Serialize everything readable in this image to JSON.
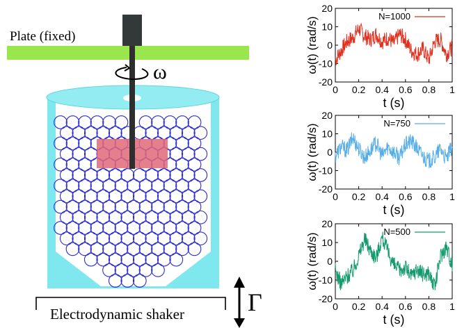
{
  "diagram": {
    "plate_label": "Plate (fixed)",
    "omega_label": "ω",
    "shaker_label": "Electrodynamic shaker",
    "gamma_label": "Γ",
    "colors": {
      "plate": "#99e64d",
      "container": "#7fe8ee",
      "container_light": "#b8f3f6",
      "grains": "#2b2bd6",
      "probe": "#e06878",
      "rod": "#333333"
    }
  },
  "chart_data": [
    {
      "type": "line",
      "legend": "N=1000",
      "color": "#e0301e",
      "xlabel": "t (s)",
      "ylabel": "ω(t)  (rad/s)",
      "xlim": [
        0,
        1
      ],
      "ylim": [
        -20,
        20
      ],
      "xticks": [
        "0",
        "0.2",
        "0.4",
        "0.6",
        "0.8",
        "1"
      ],
      "yticks": [
        "-20",
        "-10",
        "0",
        "10",
        "20"
      ],
      "x": [
        0,
        0.05,
        0.1,
        0.15,
        0.2,
        0.25,
        0.3,
        0.35,
        0.4,
        0.45,
        0.5,
        0.55,
        0.6,
        0.65,
        0.7,
        0.75,
        0.8,
        0.85,
        0.9,
        0.95,
        1
      ],
      "values": [
        -8,
        -3,
        2,
        4,
        9,
        5,
        3,
        6,
        2,
        4,
        1,
        6,
        3,
        -3,
        -5,
        -2,
        -8,
        2,
        3,
        -5,
        -1
      ]
    },
    {
      "type": "line",
      "legend": "N=750",
      "color": "#55aee8",
      "xlabel": "t (s)",
      "ylabel": "ω(t)  (rad/s)",
      "xlim": [
        0,
        1
      ],
      "ylim": [
        -20,
        20
      ],
      "xticks": [
        "0",
        "0.2",
        "0.4",
        "0.6",
        "0.8",
        "1"
      ],
      "yticks": [
        "-20",
        "-10",
        "0",
        "10",
        "20"
      ],
      "x": [
        0,
        0.05,
        0.1,
        0.15,
        0.2,
        0.25,
        0.3,
        0.35,
        0.4,
        0.45,
        0.5,
        0.55,
        0.6,
        0.65,
        0.7,
        0.75,
        0.8,
        0.85,
        0.9,
        0.95,
        1
      ],
      "values": [
        -2,
        3,
        1,
        8,
        2,
        -3,
        1,
        5,
        -2,
        3,
        0,
        -3,
        4,
        6,
        2,
        -2,
        -5,
        -3,
        2,
        -4,
        3
      ]
    },
    {
      "type": "line",
      "legend": "N=500",
      "color": "#149a6e",
      "xlabel": "t (s)",
      "ylabel": "ω(t)  (rad/s)",
      "xlim": [
        0,
        1
      ],
      "ylim": [
        -20,
        20
      ],
      "xticks": [
        "0",
        "0.2",
        "0.4",
        "0.6",
        "0.8",
        "1"
      ],
      "yticks": [
        "-20",
        "-10",
        "0",
        "10",
        "20"
      ],
      "x": [
        0,
        0.05,
        0.1,
        0.15,
        0.2,
        0.25,
        0.3,
        0.35,
        0.4,
        0.45,
        0.5,
        0.55,
        0.6,
        0.65,
        0.7,
        0.75,
        0.8,
        0.85,
        0.9,
        0.95,
        1
      ],
      "values": [
        -5,
        -12,
        -8,
        -5,
        3,
        12,
        6,
        2,
        13,
        5,
        -2,
        -5,
        -3,
        -8,
        -4,
        -7,
        -6,
        -14,
        3,
        8,
        -2
      ]
    }
  ]
}
